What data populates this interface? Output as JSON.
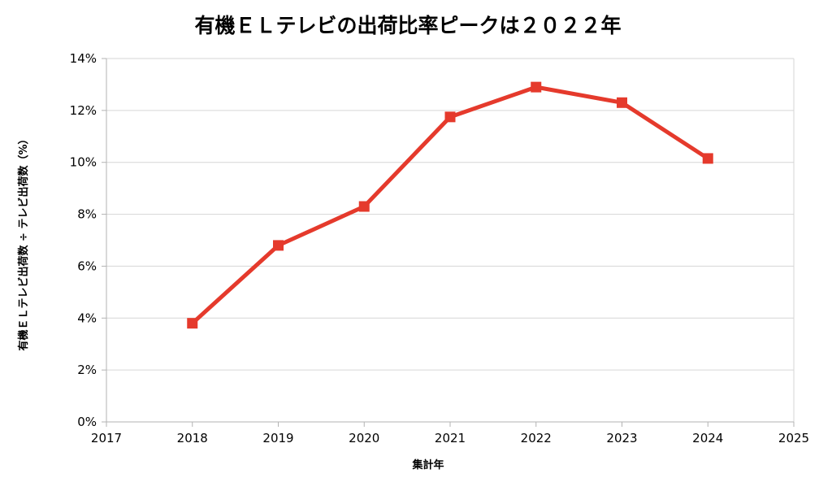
{
  "chart_data": {
    "type": "line",
    "title": "有機ＥＬテレビの出荷比率ピークは２０２２年",
    "xlabel": "集計年",
    "ylabel": "有機ＥＬテレビ出荷数 ÷ テレビ出荷数（%）",
    "xlim": [
      2017,
      2025
    ],
    "ylim": [
      0,
      14
    ],
    "x_ticks": [
      "2017",
      "2018",
      "2019",
      "2020",
      "2021",
      "2022",
      "2023",
      "2024",
      "2025"
    ],
    "y_ticks": [
      "0%",
      "2%",
      "4%",
      "6%",
      "8%",
      "10%",
      "12%",
      "14%"
    ],
    "grid": true,
    "legend": "none",
    "series": [
      {
        "color": "#e53a2c",
        "marker": "square",
        "x": [
          2018,
          2019,
          2020,
          2021,
          2022,
          2023,
          2024
        ],
        "y": [
          3.8,
          6.8,
          8.3,
          11.75,
          12.9,
          12.3,
          10.15
        ]
      }
    ]
  }
}
